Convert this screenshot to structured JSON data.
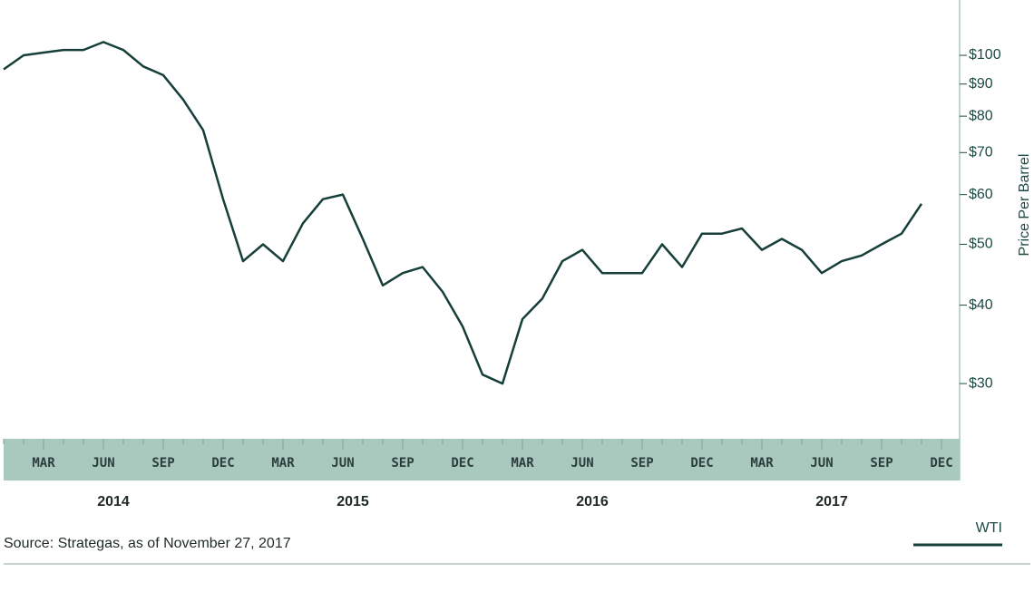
{
  "chart_data": {
    "type": "line",
    "y_axis_title": "Price Per Barrel",
    "source": "Source: Strategas, as of November 27, 2017",
    "log_scale": true,
    "x": [
      "2014-01",
      "2014-02",
      "2014-03",
      "2014-04",
      "2014-05",
      "2014-06",
      "2014-07",
      "2014-08",
      "2014-09",
      "2014-10",
      "2014-11",
      "2014-12",
      "2015-01",
      "2015-02",
      "2015-03",
      "2015-04",
      "2015-05",
      "2015-06",
      "2015-07",
      "2015-08",
      "2015-09",
      "2015-10",
      "2015-11",
      "2015-12",
      "2016-01",
      "2016-02",
      "2016-03",
      "2016-04",
      "2016-05",
      "2016-06",
      "2016-07",
      "2016-08",
      "2016-09",
      "2016-10",
      "2016-11",
      "2016-12",
      "2017-01",
      "2017-02",
      "2017-03",
      "2017-04",
      "2017-05",
      "2017-06",
      "2017-07",
      "2017-08",
      "2017-09",
      "2017-10",
      "2017-11"
    ],
    "series": [
      {
        "name": "WTI",
        "color": "#173f3a",
        "values": [
          95,
          100,
          101,
          102,
          102,
          105,
          102,
          96,
          93,
          85,
          76,
          59,
          47,
          50,
          47,
          54,
          59,
          60,
          51,
          43,
          45,
          46,
          42,
          37,
          31,
          30,
          38,
          41,
          47,
          49,
          45,
          45,
          45,
          50,
          46,
          52,
          52,
          53,
          49,
          51,
          49,
          45,
          47,
          48,
          50,
          52,
          58
        ]
      }
    ],
    "xlim": [
      "2014-01",
      "2017-12"
    ],
    "xticks": [
      {
        "value": "2014-03",
        "label": "MAR"
      },
      {
        "value": "2014-06",
        "label": "JUN"
      },
      {
        "value": "2014-09",
        "label": "SEP"
      },
      {
        "value": "2014-12",
        "label": "DEC"
      },
      {
        "value": "2015-03",
        "label": "MAR"
      },
      {
        "value": "2015-06",
        "label": "JUN"
      },
      {
        "value": "2015-09",
        "label": "SEP"
      },
      {
        "value": "2015-12",
        "label": "DEC"
      },
      {
        "value": "2016-03",
        "label": "MAR"
      },
      {
        "value": "2016-06",
        "label": "JUN"
      },
      {
        "value": "2016-09",
        "label": "SEP"
      },
      {
        "value": "2016-12",
        "label": "DEC"
      },
      {
        "value": "2017-03",
        "label": "MAR"
      },
      {
        "value": "2017-06",
        "label": "JUN"
      },
      {
        "value": "2017-09",
        "label": "SEP"
      },
      {
        "value": "2017-12",
        "label": "DEC"
      }
    ],
    "year_groups": [
      {
        "label": "2014",
        "start": "2014-01",
        "end": "2014-12"
      },
      {
        "label": "2015",
        "start": "2015-01",
        "end": "2015-12"
      },
      {
        "label": "2016",
        "start": "2016-01",
        "end": "2016-12"
      },
      {
        "label": "2017",
        "start": "2017-01",
        "end": "2017-12"
      }
    ],
    "ylim": [
      24.5,
      122.5
    ],
    "yticks": [
      {
        "value": 30,
        "label": "$30"
      },
      {
        "value": 40,
        "label": "$40"
      },
      {
        "value": 50,
        "label": "$50"
      },
      {
        "value": 60,
        "label": "$60"
      },
      {
        "value": 70,
        "label": "$70"
      },
      {
        "value": 80,
        "label": "$80"
      },
      {
        "value": 90,
        "label": "$90"
      },
      {
        "value": 100,
        "label": "$100"
      }
    ],
    "legend_position": "bottom-right"
  }
}
